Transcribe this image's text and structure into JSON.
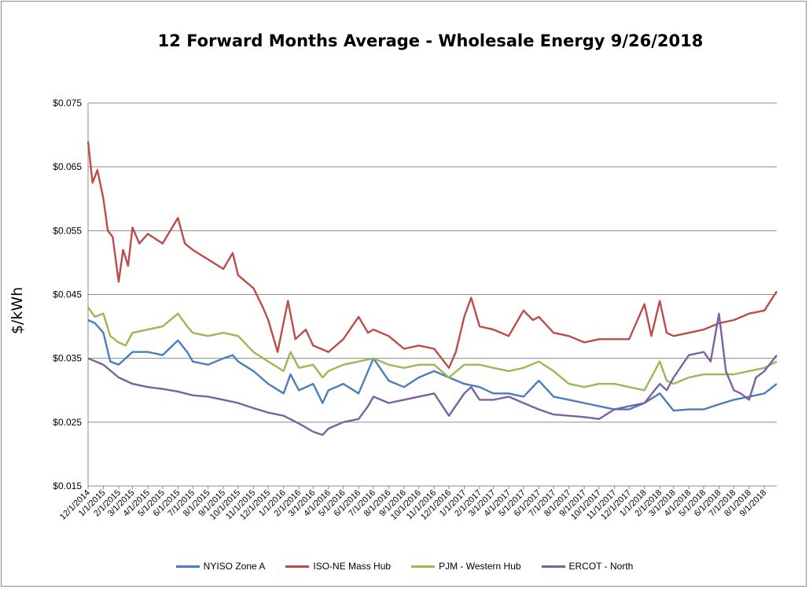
{
  "chart_data": {
    "type": "line",
    "title": "12 Forward Months Average - Wholesale Energy 9/26/2018",
    "xlabel": "",
    "ylabel": "$/kWh",
    "ylim": [
      0.015,
      0.075
    ],
    "yticks": [
      "$0.015",
      "$0.025",
      "$0.035",
      "$0.045",
      "$0.055",
      "$0.065",
      "$0.075"
    ],
    "ytick_values": [
      0.015,
      0.025,
      0.035,
      0.045,
      0.055,
      0.065,
      0.075
    ],
    "xticks": [
      "12/1/2014",
      "1/1/2015",
      "2/1/2015",
      "3/1/2015",
      "4/1/2015",
      "5/1/2015",
      "6/1/2015",
      "7/1/2015",
      "8/1/2015",
      "9/1/2015",
      "10/1/2015",
      "11/1/2015",
      "12/1/2015",
      "1/1/2016",
      "2/1/2016",
      "3/1/2016",
      "4/1/2016",
      "5/1/2016",
      "6/1/2016",
      "7/1/2016",
      "8/1/2016",
      "9/1/2016",
      "10/1/2016",
      "11/1/2016",
      "12/1/2016",
      "1/1/2017",
      "2/1/2017",
      "3/1/2017",
      "4/1/2017",
      "5/1/2017",
      "6/1/2017",
      "7/1/2017",
      "8/1/2017",
      "9/1/2017",
      "10/1/2017",
      "11/1/2017",
      "12/1/2017",
      "1/1/2018",
      "2/1/2018",
      "3/1/2018",
      "4/1/2018",
      "5/1/2018",
      "6/1/2018",
      "7/1/2018",
      "8/1/2018",
      "9/1/2018"
    ],
    "xrange": [
      "2014-12-01",
      "2018-09-26"
    ],
    "grid": true,
    "legend_position": "bottom",
    "series": [
      {
        "name": "NYISO Zone A",
        "color": "#4a7ebb",
        "points": [
          [
            "2014-12-01",
            0.041
          ],
          [
            "2014-12-15",
            0.0405
          ],
          [
            "2015-01-01",
            0.039
          ],
          [
            "2015-01-15",
            0.0345
          ],
          [
            "2015-02-01",
            0.034
          ],
          [
            "2015-02-15",
            0.035
          ],
          [
            "2015-03-01",
            0.036
          ],
          [
            "2015-04-01",
            0.036
          ],
          [
            "2015-05-01",
            0.0355
          ],
          [
            "2015-06-01",
            0.0378
          ],
          [
            "2015-06-20",
            0.036
          ],
          [
            "2015-07-01",
            0.0345
          ],
          [
            "2015-08-01",
            0.034
          ],
          [
            "2015-09-01",
            0.035
          ],
          [
            "2015-09-20",
            0.0355
          ],
          [
            "2015-10-01",
            0.0345
          ],
          [
            "2015-11-01",
            0.033
          ],
          [
            "2015-12-01",
            0.031
          ],
          [
            "2016-01-01",
            0.0295
          ],
          [
            "2016-01-15",
            0.0325
          ],
          [
            "2016-02-01",
            0.03
          ],
          [
            "2016-03-01",
            0.031
          ],
          [
            "2016-03-20",
            0.028
          ],
          [
            "2016-04-01",
            0.03
          ],
          [
            "2016-05-01",
            0.031
          ],
          [
            "2016-06-01",
            0.0295
          ],
          [
            "2016-07-01",
            0.035
          ],
          [
            "2016-08-01",
            0.0315
          ],
          [
            "2016-09-01",
            0.0305
          ],
          [
            "2016-10-01",
            0.032
          ],
          [
            "2016-11-01",
            0.033
          ],
          [
            "2016-12-01",
            0.032
          ],
          [
            "2017-01-01",
            0.031
          ],
          [
            "2017-02-01",
            0.0305
          ],
          [
            "2017-03-01",
            0.0295
          ],
          [
            "2017-04-01",
            0.0295
          ],
          [
            "2017-05-01",
            0.029
          ],
          [
            "2017-06-01",
            0.0315
          ],
          [
            "2017-07-01",
            0.029
          ],
          [
            "2017-08-01",
            0.0285
          ],
          [
            "2017-09-01",
            0.028
          ],
          [
            "2017-10-01",
            0.0275
          ],
          [
            "2017-11-01",
            0.027
          ],
          [
            "2017-12-01",
            0.027
          ],
          [
            "2018-01-01",
            0.028
          ],
          [
            "2018-02-01",
            0.0295
          ],
          [
            "2018-03-01",
            0.0268
          ],
          [
            "2018-04-01",
            0.027
          ],
          [
            "2018-05-01",
            0.027
          ],
          [
            "2018-06-01",
            0.0278
          ],
          [
            "2018-07-01",
            0.0285
          ],
          [
            "2018-08-01",
            0.029
          ],
          [
            "2018-09-01",
            0.0295
          ],
          [
            "2018-09-26",
            0.031
          ]
        ]
      },
      {
        "name": "ISO-NE Mass Hub",
        "color": "#be4b48",
        "points": [
          [
            "2014-12-01",
            0.069
          ],
          [
            "2014-12-10",
            0.0625
          ],
          [
            "2014-12-20",
            0.0645
          ],
          [
            "2015-01-01",
            0.06
          ],
          [
            "2015-01-10",
            0.055
          ],
          [
            "2015-01-20",
            0.054
          ],
          [
            "2015-02-01",
            0.047
          ],
          [
            "2015-02-10",
            0.052
          ],
          [
            "2015-02-20",
            0.0495
          ],
          [
            "2015-03-01",
            0.0555
          ],
          [
            "2015-03-15",
            0.053
          ],
          [
            "2015-04-01",
            0.0545
          ],
          [
            "2015-05-01",
            0.053
          ],
          [
            "2015-06-01",
            0.057
          ],
          [
            "2015-06-15",
            0.053
          ],
          [
            "2015-07-01",
            0.052
          ],
          [
            "2015-08-01",
            0.0505
          ],
          [
            "2015-09-01",
            0.049
          ],
          [
            "2015-09-20",
            0.0515
          ],
          [
            "2015-10-01",
            0.048
          ],
          [
            "2015-11-01",
            0.046
          ],
          [
            "2015-11-20",
            0.043
          ],
          [
            "2015-12-01",
            0.041
          ],
          [
            "2015-12-20",
            0.036
          ],
          [
            "2016-01-10",
            0.044
          ],
          [
            "2016-01-25",
            0.038
          ],
          [
            "2016-02-15",
            0.0395
          ],
          [
            "2016-03-01",
            0.037
          ],
          [
            "2016-04-01",
            0.036
          ],
          [
            "2016-05-01",
            0.038
          ],
          [
            "2016-06-01",
            0.0415
          ],
          [
            "2016-06-20",
            0.039
          ],
          [
            "2016-07-01",
            0.0395
          ],
          [
            "2016-08-01",
            0.0385
          ],
          [
            "2016-09-01",
            0.0365
          ],
          [
            "2016-10-01",
            0.037
          ],
          [
            "2016-11-01",
            0.0365
          ],
          [
            "2016-12-01",
            0.0335
          ],
          [
            "2016-12-15",
            0.036
          ],
          [
            "2017-01-01",
            0.0415
          ],
          [
            "2017-01-15",
            0.0445
          ],
          [
            "2017-02-01",
            0.04
          ],
          [
            "2017-03-01",
            0.0395
          ],
          [
            "2017-04-01",
            0.0385
          ],
          [
            "2017-05-01",
            0.0425
          ],
          [
            "2017-05-20",
            0.041
          ],
          [
            "2017-06-01",
            0.0415
          ],
          [
            "2017-07-01",
            0.039
          ],
          [
            "2017-08-01",
            0.0385
          ],
          [
            "2017-09-01",
            0.0375
          ],
          [
            "2017-10-01",
            0.038
          ],
          [
            "2017-11-01",
            0.038
          ],
          [
            "2017-12-01",
            0.038
          ],
          [
            "2018-01-01",
            0.0435
          ],
          [
            "2018-01-15",
            0.0385
          ],
          [
            "2018-02-01",
            0.044
          ],
          [
            "2018-02-15",
            0.039
          ],
          [
            "2018-03-01",
            0.0385
          ],
          [
            "2018-04-01",
            0.039
          ],
          [
            "2018-05-01",
            0.0395
          ],
          [
            "2018-06-01",
            0.0405
          ],
          [
            "2018-07-01",
            0.041
          ],
          [
            "2018-08-01",
            0.042
          ],
          [
            "2018-09-01",
            0.0425
          ],
          [
            "2018-09-26",
            0.0455
          ]
        ]
      },
      {
        "name": "PJM - Western Hub",
        "color": "#98b954",
        "points": [
          [
            "2014-12-01",
            0.043
          ],
          [
            "2014-12-15",
            0.0415
          ],
          [
            "2015-01-01",
            0.042
          ],
          [
            "2015-01-15",
            0.0385
          ],
          [
            "2015-02-01",
            0.0375
          ],
          [
            "2015-02-15",
            0.037
          ],
          [
            "2015-03-01",
            0.039
          ],
          [
            "2015-04-01",
            0.0395
          ],
          [
            "2015-05-01",
            0.04
          ],
          [
            "2015-06-01",
            0.042
          ],
          [
            "2015-06-20",
            0.04
          ],
          [
            "2015-07-01",
            0.039
          ],
          [
            "2015-08-01",
            0.0385
          ],
          [
            "2015-09-01",
            0.039
          ],
          [
            "2015-10-01",
            0.0385
          ],
          [
            "2015-11-01",
            0.036
          ],
          [
            "2015-12-01",
            0.0345
          ],
          [
            "2016-01-01",
            0.033
          ],
          [
            "2016-01-15",
            0.036
          ],
          [
            "2016-02-01",
            0.0335
          ],
          [
            "2016-03-01",
            0.034
          ],
          [
            "2016-03-20",
            0.032
          ],
          [
            "2016-04-01",
            0.033
          ],
          [
            "2016-05-01",
            0.034
          ],
          [
            "2016-06-01",
            0.0345
          ],
          [
            "2016-07-01",
            0.035
          ],
          [
            "2016-08-01",
            0.034
          ],
          [
            "2016-09-01",
            0.0335
          ],
          [
            "2016-10-01",
            0.034
          ],
          [
            "2016-11-01",
            0.034
          ],
          [
            "2016-12-01",
            0.032
          ],
          [
            "2017-01-01",
            0.034
          ],
          [
            "2017-02-01",
            0.034
          ],
          [
            "2017-03-01",
            0.0335
          ],
          [
            "2017-04-01",
            0.033
          ],
          [
            "2017-05-01",
            0.0335
          ],
          [
            "2017-06-01",
            0.0345
          ],
          [
            "2017-07-01",
            0.033
          ],
          [
            "2017-08-01",
            0.031
          ],
          [
            "2017-09-01",
            0.0305
          ],
          [
            "2017-10-01",
            0.031
          ],
          [
            "2017-11-01",
            0.031
          ],
          [
            "2017-12-01",
            0.0305
          ],
          [
            "2018-01-01",
            0.03
          ],
          [
            "2018-02-01",
            0.0345
          ],
          [
            "2018-02-15",
            0.0315
          ],
          [
            "2018-03-01",
            0.031
          ],
          [
            "2018-04-01",
            0.032
          ],
          [
            "2018-05-01",
            0.0325
          ],
          [
            "2018-06-01",
            0.0325
          ],
          [
            "2018-07-01",
            0.0325
          ],
          [
            "2018-08-01",
            0.033
          ],
          [
            "2018-09-01",
            0.0335
          ],
          [
            "2018-09-26",
            0.0345
          ]
        ]
      },
      {
        "name": "ERCOT - North",
        "color": "#7d60a0",
        "points": [
          [
            "2014-12-01",
            0.035
          ],
          [
            "2015-01-01",
            0.034
          ],
          [
            "2015-02-01",
            0.032
          ],
          [
            "2015-03-01",
            0.031
          ],
          [
            "2015-04-01",
            0.0305
          ],
          [
            "2015-05-01",
            0.0302
          ],
          [
            "2015-06-01",
            0.0298
          ],
          [
            "2015-07-01",
            0.0292
          ],
          [
            "2015-08-01",
            0.029
          ],
          [
            "2015-09-01",
            0.0285
          ],
          [
            "2015-10-01",
            0.028
          ],
          [
            "2015-11-01",
            0.0272
          ],
          [
            "2015-12-01",
            0.0265
          ],
          [
            "2016-01-01",
            0.026
          ],
          [
            "2016-02-01",
            0.0248
          ],
          [
            "2016-03-01",
            0.0235
          ],
          [
            "2016-03-20",
            0.023
          ],
          [
            "2016-04-01",
            0.024
          ],
          [
            "2016-05-01",
            0.025
          ],
          [
            "2016-06-01",
            0.0255
          ],
          [
            "2016-06-20",
            0.0275
          ],
          [
            "2016-07-01",
            0.029
          ],
          [
            "2016-08-01",
            0.028
          ],
          [
            "2016-09-01",
            0.0285
          ],
          [
            "2016-10-01",
            0.029
          ],
          [
            "2016-11-01",
            0.0295
          ],
          [
            "2016-12-01",
            0.026
          ],
          [
            "2017-01-01",
            0.0295
          ],
          [
            "2017-01-15",
            0.0305
          ],
          [
            "2017-02-01",
            0.0285
          ],
          [
            "2017-03-01",
            0.0285
          ],
          [
            "2017-04-01",
            0.029
          ],
          [
            "2017-05-01",
            0.028
          ],
          [
            "2017-06-01",
            0.027
          ],
          [
            "2017-07-01",
            0.0262
          ],
          [
            "2017-08-01",
            0.026
          ],
          [
            "2017-09-01",
            0.0258
          ],
          [
            "2017-10-01",
            0.0255
          ],
          [
            "2017-11-01",
            0.027
          ],
          [
            "2017-12-01",
            0.0275
          ],
          [
            "2018-01-01",
            0.028
          ],
          [
            "2018-02-01",
            0.031
          ],
          [
            "2018-02-15",
            0.03
          ],
          [
            "2018-03-01",
            0.032
          ],
          [
            "2018-04-01",
            0.0355
          ],
          [
            "2018-05-01",
            0.036
          ],
          [
            "2018-05-15",
            0.0345
          ],
          [
            "2018-06-01",
            0.042
          ],
          [
            "2018-06-15",
            0.033
          ],
          [
            "2018-07-01",
            0.03
          ],
          [
            "2018-07-15",
            0.0295
          ],
          [
            "2018-08-01",
            0.0285
          ],
          [
            "2018-08-15",
            0.032
          ],
          [
            "2018-09-01",
            0.033
          ],
          [
            "2018-09-26",
            0.0355
          ]
        ]
      }
    ]
  }
}
